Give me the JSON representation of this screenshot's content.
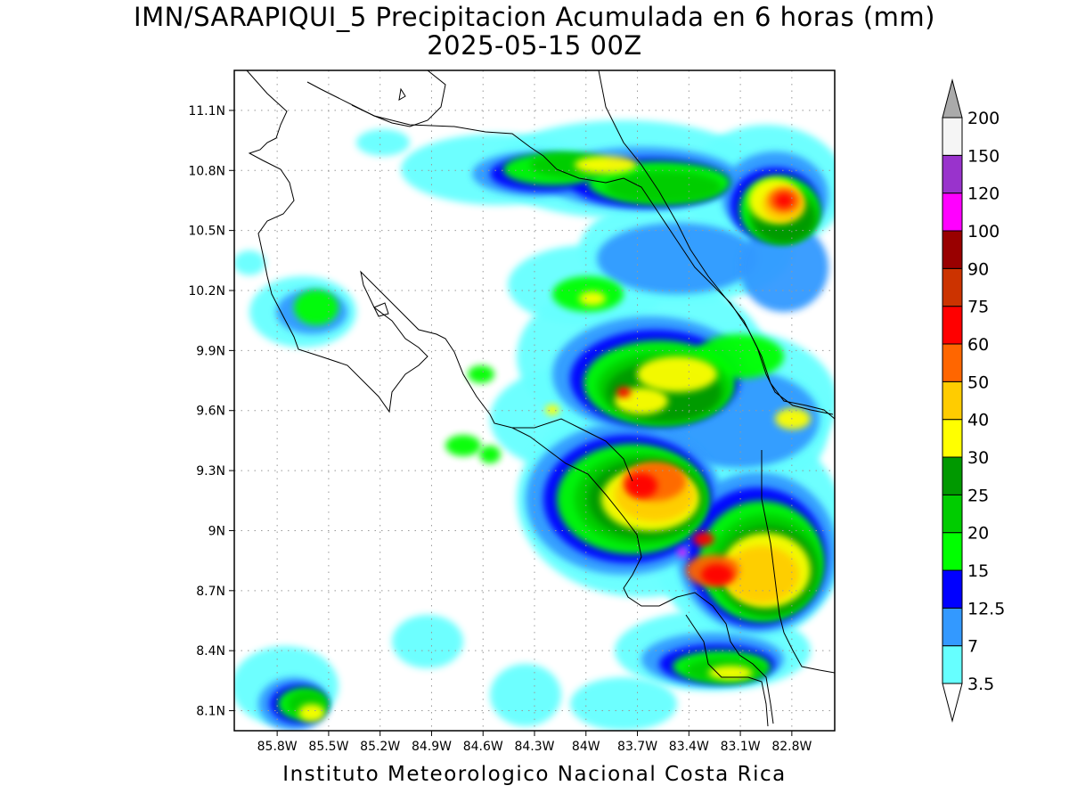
{
  "header": {
    "title": "IMN/SARAPIQUI_5 Precipitacion Acumulada en 6 horas (mm)",
    "valid_time": "2025-05-15 00Z"
  },
  "footer": {
    "credit": "Instituto Meteorologico Nacional Costa Rica"
  },
  "map": {
    "type": "precipitation contour map",
    "lon_range": [
      -86.05,
      -82.55
    ],
    "lat_range": [
      8.0,
      11.3
    ],
    "lat_ticks": [
      "11.1N",
      "10.8N",
      "10.5N",
      "10.2N",
      "9.9N",
      "9.6N",
      "9.3N",
      "9N",
      "8.7N",
      "8.4N",
      "8.1N"
    ],
    "lon_ticks": [
      "85.8W",
      "85.5W",
      "85.2W",
      "84.9W",
      "84.6W",
      "84.3W",
      "84W",
      "83.7W",
      "83.4W",
      "83.1W",
      "82.8W"
    ],
    "gridlines": "dotted"
  },
  "colorbar": {
    "levels": [
      "3.5",
      "7",
      "12.5",
      "15",
      "20",
      "25",
      "30",
      "40",
      "50",
      "60",
      "75",
      "90",
      "100",
      "120",
      "150",
      "200"
    ],
    "colors": [
      "#66ffff",
      "#3399ff",
      "#0000ff",
      "#00ff00",
      "#00cc00",
      "#009900",
      "#ffff00",
      "#ffcc00",
      "#ff6600",
      "#ff0000",
      "#cc3300",
      "#990000",
      "#ff00ff",
      "#9933cc",
      "#f5f5f5"
    ],
    "over_color": "#aaaaaa",
    "under_color": "#ffffff"
  }
}
